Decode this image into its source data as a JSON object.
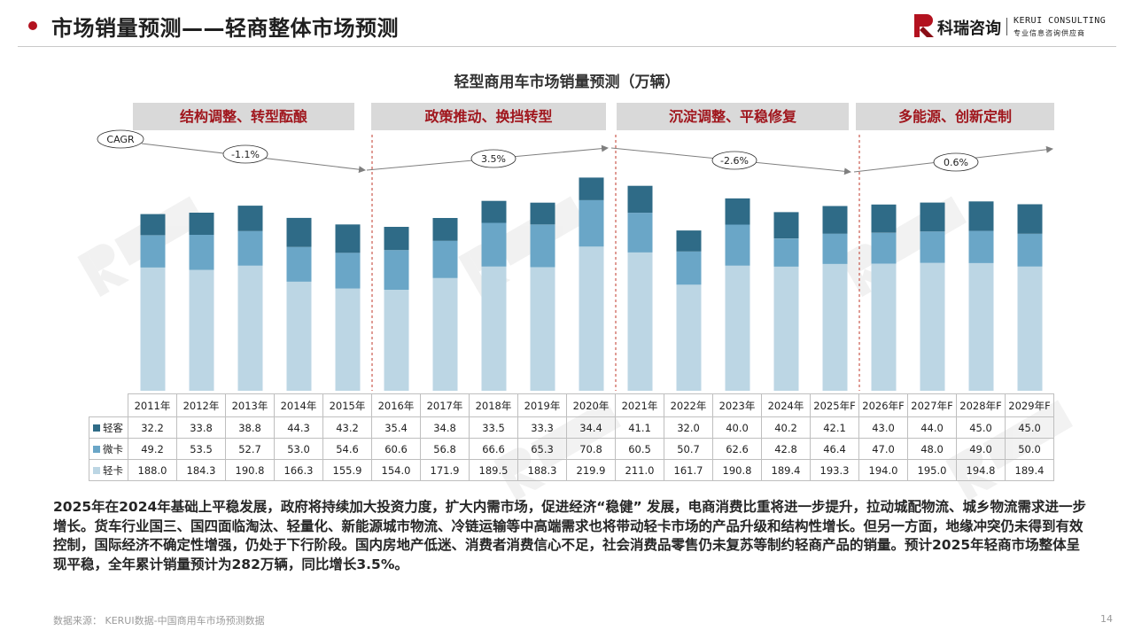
{
  "header": {
    "title": "市场销量预测——轻商整体市场预测",
    "logo_cn": "科瑞咨询",
    "logo_en": "KERUI CONSULTING",
    "logo_tagline": "专业信息咨询供应商"
  },
  "colors": {
    "accent": "#b3121f",
    "light_truck": "#bcd6e4",
    "micro_truck": "#6aa6c7",
    "light_bus": "#2f6b87",
    "phase_bg": "#d9d9d9",
    "phase_text": "#a0161d"
  },
  "phases": [
    {
      "label": "结构调整、转型酝酿",
      "cagr": "-1.1%"
    },
    {
      "label": "政策推动、换挡转型",
      "cagr": "3.5%"
    },
    {
      "label": "沉淀调整、平稳修复",
      "cagr": "-2.6%"
    },
    {
      "label": "多能源、创新定制",
      "cagr": "0.6%"
    }
  ],
  "cagr_label": "CAGR",
  "chart_data": {
    "type": "bar",
    "stacked": true,
    "title": "轻型商用车市场销量预测（万辆）",
    "categories": [
      "2011年",
      "2012年",
      "2013年",
      "2014年",
      "2015年",
      "2016年",
      "2017年",
      "2018年",
      "2019年",
      "2020年",
      "2021年",
      "2022年",
      "2023年",
      "2024年",
      "2025年F",
      "2026年F",
      "2027年F",
      "2028年F",
      "2029年F"
    ],
    "series": [
      {
        "name": "轻卡",
        "color": "#bcd6e4",
        "values": [
          188.0,
          184.3,
          190.8,
          166.3,
          155.9,
          154.0,
          171.9,
          189.5,
          188.3,
          219.9,
          211.0,
          161.7,
          190.8,
          189.4,
          193.3,
          194.0,
          195.0,
          194.8,
          189.4
        ]
      },
      {
        "name": "微卡",
        "color": "#6aa6c7",
        "values": [
          49.2,
          53.5,
          52.7,
          53.0,
          54.6,
          60.6,
          56.8,
          66.6,
          65.3,
          70.8,
          60.5,
          50.7,
          62.6,
          42.8,
          46.4,
          47.0,
          48.0,
          49.0,
          50.0
        ]
      },
      {
        "name": "轻客",
        "color": "#2f6b87",
        "values": [
          32.2,
          33.8,
          38.8,
          44.3,
          43.2,
          35.4,
          34.8,
          33.5,
          33.3,
          34.4,
          41.1,
          32.0,
          40.0,
          40.2,
          42.1,
          43.0,
          44.0,
          45.0,
          45.0
        ]
      }
    ],
    "table_rows": [
      {
        "name": "轻客",
        "values": [
          "32.2",
          "33.8",
          "38.8",
          "44.3",
          "43.2",
          "35.4",
          "34.8",
          "33.5",
          "33.3",
          "34.4",
          "41.1",
          "32.0",
          "40.0",
          "40.2",
          "42.1",
          "43.0",
          "44.0",
          "45.0",
          "45.0"
        ]
      },
      {
        "name": "微卡",
        "values": [
          "49.2",
          "53.5",
          "52.7",
          "53.0",
          "54.6",
          "60.6",
          "56.8",
          "66.6",
          "65.3",
          "70.8",
          "60.5",
          "50.7",
          "62.6",
          "42.8",
          "46.4",
          "47.0",
          "48.0",
          "49.0",
          "50.0"
        ]
      },
      {
        "name": "轻卡",
        "values": [
          "188.0",
          "184.3",
          "190.8",
          "166.3",
          "155.9",
          "154.0",
          "171.9",
          "189.5",
          "188.3",
          "219.9",
          "211.0",
          "161.7",
          "190.8",
          "189.4",
          "193.3",
          "194.0",
          "195.0",
          "194.8",
          "189.4"
        ]
      }
    ]
  },
  "summary": "2025年在2024年基础上平稳发展，政府将持续加大投资力度，扩大内需市场，促进经济“稳健” 发展，电商消费比重将进一步提升，拉动城配物流、城乡物流需求进一步增长。货车行业国三、国四面临淘汰、轻量化、新能源城市物流、冷链运输等中高端需求也将带动轻卡市场的产品升级和结构性增长。但另一方面，地缘冲突仍未得到有效控制，国际经济不确定性增强，仍处于下行阶段。国内房地产低迷、消费者消费信心不足，社会消费品零售仍未复苏等制约轻商产品的销量。预计2025年轻商市场整体呈现平稳，全年累计销量预计为282万辆，同比增长3.5%。",
  "source": "数据来源： KERUI数据-中国商用车市场预测数据",
  "page_number": "14"
}
